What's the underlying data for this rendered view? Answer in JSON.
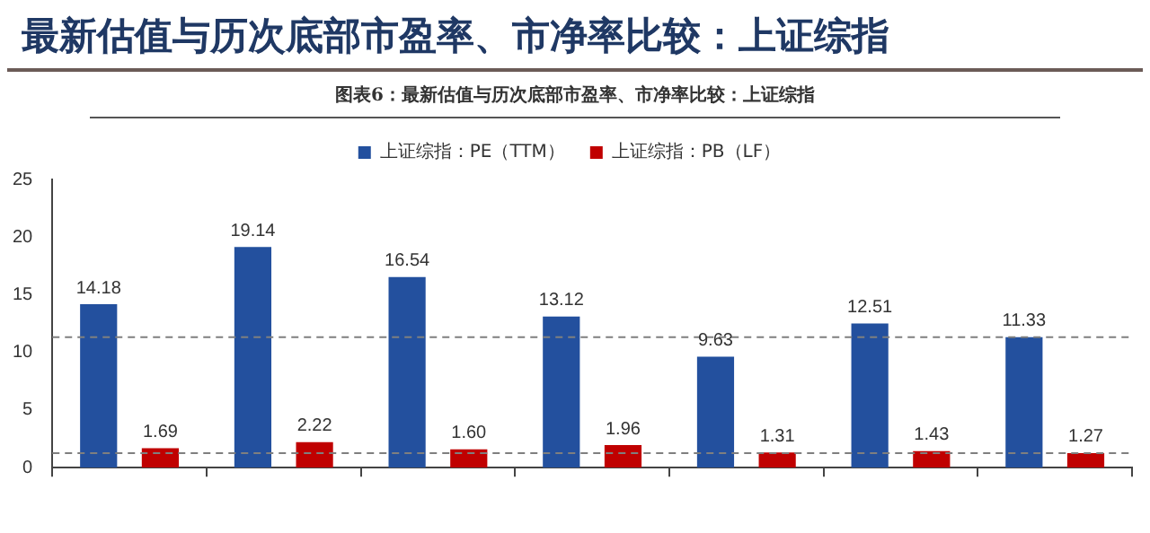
{
  "chart_data": {
    "type": "bar",
    "title": "最新估值与历次底部市盈率、市净率比较：上证综指",
    "subtitle": "图表6：最新估值与历次底部市盈率、市净率比较：上证综指",
    "categories": [
      null,
      null,
      null,
      null,
      null,
      null,
      null
    ],
    "series": [
      {
        "name": "上证综指：PE（TTM）",
        "color": "#23509e",
        "values": [
          14.18,
          19.14,
          16.54,
          13.12,
          9.63,
          12.51,
          11.33
        ]
      },
      {
        "name": "上证综指：PB（LF）",
        "color": "#c00000",
        "values": [
          1.69,
          2.22,
          1.6,
          1.96,
          1.31,
          1.43,
          1.27
        ],
        "value_labels": [
          "1.69",
          "2.22",
          "1.60",
          "1.96",
          "1.31",
          "1.43",
          "1.27"
        ]
      }
    ],
    "ylim": [
      0,
      25
    ],
    "yticks": [
      0,
      5,
      10,
      15,
      20,
      25
    ],
    "grid": false,
    "legend": "top",
    "data_labels": true,
    "ref_lines": [
      {
        "axis": "y",
        "value": 11.33,
        "line_style": "dashed",
        "color": "#7f7f7f"
      },
      {
        "axis": "y",
        "value": 1.27,
        "line_style": "dashed",
        "color": "#7f7f7f"
      }
    ]
  }
}
